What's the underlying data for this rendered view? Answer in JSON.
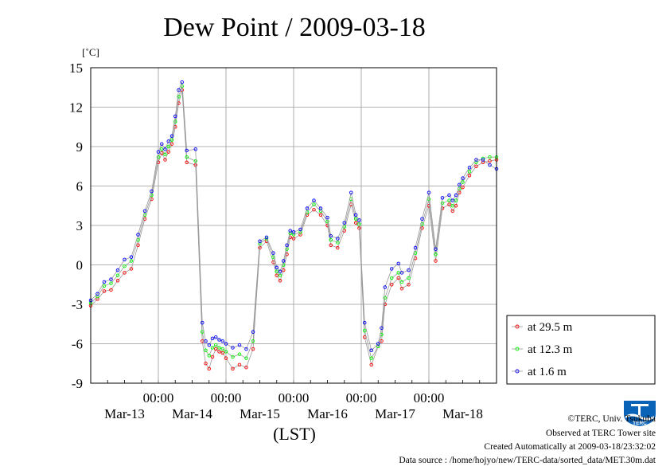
{
  "chart_data": {
    "type": "line",
    "title": "Dew Point / 2009-03-18",
    "unit_label": "[˚C]",
    "xlabel": "(LST)",
    "ylim": [
      -9,
      15
    ],
    "xlim": [
      0,
      6
    ],
    "yticks": [
      -9,
      -6,
      -3,
      0,
      3,
      6,
      9,
      12,
      15
    ],
    "x_time_labels": [
      "00:00",
      "00:00",
      "00:00",
      "00:00",
      "00:00"
    ],
    "x_time_positions": [
      1,
      2,
      3,
      4,
      5
    ],
    "x_date_labels": [
      "Mar-13",
      "Mar-14",
      "Mar-15",
      "Mar-16",
      "Mar-17",
      "Mar-18"
    ],
    "x_date_positions": [
      0.5,
      1.5,
      2.5,
      3.5,
      4.5,
      5.5
    ],
    "x_unit": "days since start of Mar-13 (LST)",
    "grid": true,
    "legend_position": "right",
    "series": [
      {
        "name": "at 29.5 m",
        "color": "#ff0000",
        "x": [
          0.0,
          0.1,
          0.2,
          0.3,
          0.4,
          0.5,
          0.6,
          0.7,
          0.8,
          0.9,
          1.0,
          1.05,
          1.1,
          1.15,
          1.2,
          1.25,
          1.3,
          1.35,
          1.42,
          1.55,
          1.65,
          1.7,
          1.75,
          1.8,
          1.85,
          1.9,
          1.95,
          2.0,
          2.1,
          2.2,
          2.3,
          2.4,
          2.5,
          2.6,
          2.7,
          2.75,
          2.8,
          2.85,
          2.9,
          2.95,
          3.0,
          3.1,
          3.2,
          3.3,
          3.4,
          3.5,
          3.55,
          3.65,
          3.75,
          3.85,
          3.92,
          3.97,
          4.05,
          4.15,
          4.25,
          4.3,
          4.35,
          4.45,
          4.55,
          4.6,
          4.7,
          4.8,
          4.9,
          5.0,
          5.1,
          5.2,
          5.3,
          5.35,
          5.4,
          5.45,
          5.5,
          5.6,
          5.7,
          5.8,
          5.9,
          6.0
        ],
        "y": [
          -3.1,
          -2.6,
          -2.0,
          -1.9,
          -1.2,
          -0.6,
          -0.3,
          1.5,
          3.5,
          5.0,
          7.8,
          8.5,
          8.0,
          8.6,
          9.2,
          10.5,
          12.3,
          13.3,
          7.8,
          7.6,
          -5.8,
          -7.5,
          -7.9,
          -7.0,
          -6.4,
          -6.6,
          -6.7,
          -7.1,
          -7.9,
          -7.6,
          -7.8,
          -6.4,
          1.3,
          1.8,
          0.2,
          -0.8,
          -1.2,
          -0.4,
          0.8,
          2.1,
          2.0,
          2.3,
          3.8,
          4.2,
          3.8,
          3.0,
          1.5,
          1.3,
          2.6,
          4.6,
          3.2,
          2.8,
          -5.5,
          -7.6,
          -6.2,
          -5.8,
          -3.0,
          -1.5,
          -1.0,
          -1.8,
          -1.5,
          0.5,
          2.8,
          4.5,
          0.3,
          4.3,
          4.6,
          4.1,
          4.5,
          5.5,
          5.9,
          6.8,
          7.5,
          7.8,
          7.9,
          8.0
        ]
      },
      {
        "name": "at 12.3 m",
        "color": "#00ff00",
        "x": [
          0.0,
          0.1,
          0.2,
          0.3,
          0.4,
          0.5,
          0.6,
          0.7,
          0.8,
          0.9,
          1.0,
          1.05,
          1.1,
          1.15,
          1.2,
          1.25,
          1.3,
          1.35,
          1.42,
          1.55,
          1.65,
          1.7,
          1.75,
          1.8,
          1.85,
          1.9,
          1.95,
          2.0,
          2.1,
          2.2,
          2.3,
          2.4,
          2.5,
          2.6,
          2.7,
          2.75,
          2.8,
          2.85,
          2.9,
          2.95,
          3.0,
          3.1,
          3.2,
          3.3,
          3.4,
          3.5,
          3.55,
          3.65,
          3.75,
          3.85,
          3.92,
          3.97,
          4.05,
          4.15,
          4.25,
          4.3,
          4.35,
          4.45,
          4.55,
          4.6,
          4.7,
          4.8,
          4.9,
          5.0,
          5.1,
          5.2,
          5.3,
          5.35,
          5.4,
          5.45,
          5.5,
          5.6,
          5.7,
          5.8,
          5.9,
          6.0
        ],
        "y": [
          -2.9,
          -2.4,
          -1.6,
          -1.4,
          -0.8,
          -0.1,
          0.3,
          1.9,
          3.8,
          5.3,
          8.2,
          8.8,
          8.4,
          9.0,
          9.5,
          10.9,
          12.8,
          13.6,
          8.2,
          7.9,
          -5.1,
          -6.5,
          -6.9,
          -6.3,
          -6.1,
          -6.3,
          -6.4,
          -6.6,
          -7.0,
          -6.8,
          -7.1,
          -5.8,
          1.6,
          2.0,
          0.6,
          -0.5,
          -0.8,
          0.0,
          1.2,
          2.4,
          2.3,
          2.5,
          4.0,
          4.6,
          4.1,
          3.3,
          1.9,
          1.7,
          2.9,
          5.0,
          3.5,
          3.1,
          -5.0,
          -7.1,
          -6.2,
          -5.3,
          -2.5,
          -1.0,
          -0.6,
          -1.3,
          -1.0,
          0.9,
          3.1,
          5.0,
          0.8,
          4.7,
          4.9,
          4.5,
          4.9,
          5.8,
          6.3,
          7.1,
          7.8,
          8.1,
          8.2,
          8.2
        ]
      },
      {
        "name": "at 1.6 m",
        "color": "#0000ff",
        "x": [
          0.0,
          0.1,
          0.2,
          0.3,
          0.4,
          0.5,
          0.6,
          0.7,
          0.8,
          0.9,
          1.0,
          1.05,
          1.1,
          1.15,
          1.2,
          1.25,
          1.3,
          1.35,
          1.42,
          1.55,
          1.65,
          1.7,
          1.75,
          1.8,
          1.85,
          1.9,
          1.95,
          2.0,
          2.1,
          2.2,
          2.3,
          2.4,
          2.5,
          2.6,
          2.7,
          2.75,
          2.8,
          2.85,
          2.9,
          2.95,
          3.0,
          3.1,
          3.2,
          3.3,
          3.4,
          3.5,
          3.55,
          3.65,
          3.75,
          3.85,
          3.92,
          3.97,
          4.05,
          4.15,
          4.25,
          4.3,
          4.35,
          4.45,
          4.55,
          4.6,
          4.7,
          4.8,
          4.9,
          5.0,
          5.1,
          5.2,
          5.3,
          5.35,
          5.4,
          5.45,
          5.5,
          5.6,
          5.7,
          5.8,
          5.9,
          6.0
        ],
        "y": [
          -2.7,
          -2.2,
          -1.3,
          -1.1,
          -0.4,
          0.4,
          0.6,
          2.3,
          4.1,
          5.6,
          8.6,
          9.2,
          8.8,
          9.4,
          9.8,
          11.3,
          13.3,
          13.9,
          8.7,
          8.8,
          -4.4,
          -5.8,
          -6.1,
          -5.6,
          -5.5,
          -5.7,
          -5.8,
          -6.0,
          -6.3,
          -6.1,
          -6.4,
          -5.1,
          1.8,
          2.1,
          0.9,
          -0.2,
          -0.5,
          0.3,
          1.5,
          2.6,
          2.5,
          2.7,
          4.3,
          4.9,
          4.3,
          3.6,
          2.2,
          2.0,
          3.2,
          5.5,
          3.8,
          3.4,
          -4.4,
          -6.5,
          -6.0,
          -4.8,
          -1.7,
          -0.3,
          0.1,
          -0.6,
          -0.4,
          1.3,
          3.5,
          5.5,
          1.2,
          5.1,
          5.3,
          4.9,
          5.3,
          6.1,
          6.6,
          7.4,
          8.0,
          8.0,
          7.6,
          7.3
        ]
      }
    ]
  },
  "credits": {
    "copyright": "©TERC, Univ. Tsukuba",
    "site": "Observed at TERC Tower site",
    "created": "Created Automatically at 2009-03-18/23:32:02",
    "source": "Data source : /home/hojyo/new/TERC-data/sorted_data/MET.30m.dat",
    "logo_text": "TERC"
  }
}
